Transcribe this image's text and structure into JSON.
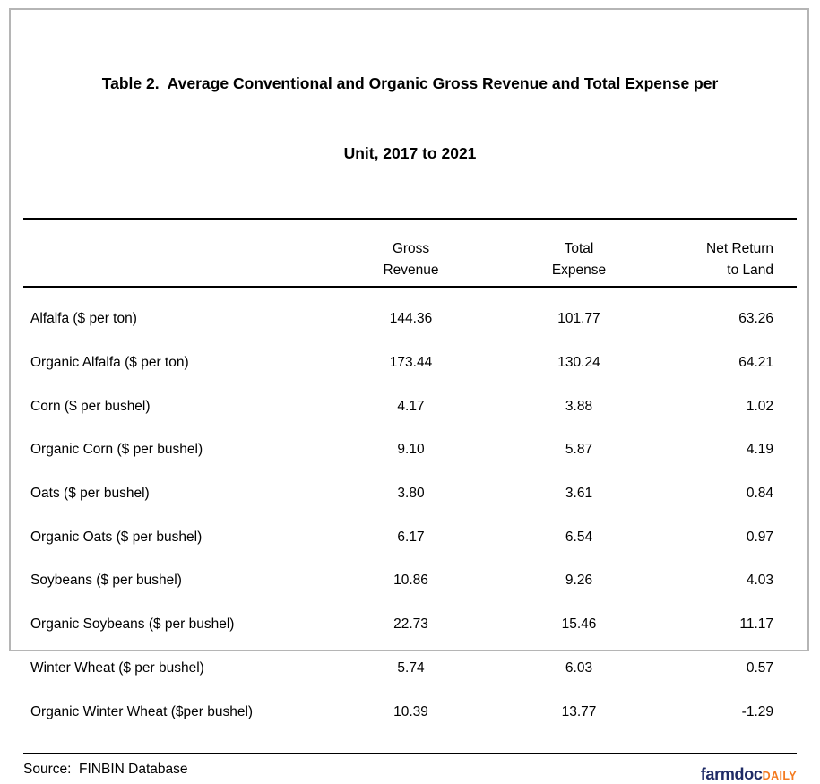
{
  "title": {
    "line1": "Table 2.  Average Conventional and Organic Gross Revenue and Total Expense per",
    "line2": "Unit, 2017 to 2021"
  },
  "header": {
    "columns": [
      {
        "line1": "Gross",
        "line2": "Revenue"
      },
      {
        "line1": "Total",
        "line2": "Expense"
      },
      {
        "line1": "Net Return",
        "line2": "to Land"
      }
    ]
  },
  "rows": [
    {
      "label": "Alfalfa ($ per ton)",
      "gross_revenue": "144.36",
      "total_expense": "101.77",
      "net_return": "63.26"
    },
    {
      "label": "Organic Alfalfa ($ per ton)",
      "gross_revenue": "173.44",
      "total_expense": "130.24",
      "net_return": "64.21"
    },
    {
      "label": "Corn ($ per bushel)",
      "gross_revenue": "4.17",
      "total_expense": "3.88",
      "net_return": "1.02"
    },
    {
      "label": "Organic Corn ($ per bushel)",
      "gross_revenue": "9.10",
      "total_expense": "5.87",
      "net_return": "4.19"
    },
    {
      "label": "Oats ($ per bushel)",
      "gross_revenue": "3.80",
      "total_expense": "3.61",
      "net_return": "0.84"
    },
    {
      "label": "Organic Oats ($ per bushel)",
      "gross_revenue": "6.17",
      "total_expense": "6.54",
      "net_return": "0.97"
    },
    {
      "label": "Soybeans ($ per bushel)",
      "gross_revenue": "10.86",
      "total_expense": "9.26",
      "net_return": "4.03"
    },
    {
      "label": "Organic Soybeans ($ per bushel)",
      "gross_revenue": "22.73",
      "total_expense": "15.46",
      "net_return": "11.17"
    },
    {
      "label": "Winter Wheat ($ per bushel)",
      "gross_revenue": "5.74",
      "total_expense": "6.03",
      "net_return": "0.57"
    },
    {
      "label": "Organic Winter Wheat ($per bushel)",
      "gross_revenue": "10.39",
      "total_expense": "13.77",
      "net_return": "-1.29"
    }
  ],
  "footer": {
    "source": "Source:  FINBIN Database",
    "logo": {
      "farmdoc": "farmdoc",
      "daily": "DAILY"
    }
  },
  "colors": {
    "logo_navy": "#1f2b66",
    "logo_orange": "#f47b20",
    "rule_black": "#000000",
    "card_border_gray": "#b5b5b5"
  },
  "chart_data": {
    "type": "table",
    "title": "Table 2.  Average Conventional and Organic Gross Revenue and Total Expense per Unit, 2017 to 2021",
    "columns": [
      "",
      "Gross Revenue",
      "Total Expense",
      "Net Return to Land"
    ],
    "rows": [
      [
        "Alfalfa ($ per ton)",
        144.36,
        101.77,
        63.26
      ],
      [
        "Organic Alfalfa ($ per ton)",
        173.44,
        130.24,
        64.21
      ],
      [
        "Corn ($ per bushel)",
        4.17,
        3.88,
        1.02
      ],
      [
        "Organic Corn ($ per bushel)",
        9.1,
        5.87,
        4.19
      ],
      [
        "Oats ($ per bushel)",
        3.8,
        3.61,
        0.84
      ],
      [
        "Organic Oats ($ per bushel)",
        6.17,
        6.54,
        0.97
      ],
      [
        "Soybeans ($ per bushel)",
        10.86,
        9.26,
        4.03
      ],
      [
        "Organic Soybeans ($ per bushel)",
        22.73,
        15.46,
        11.17
      ],
      [
        "Winter Wheat ($ per bushel)",
        5.74,
        6.03,
        0.57
      ],
      [
        "Organic Winter Wheat ($per bushel)",
        10.39,
        13.77,
        -1.29
      ]
    ],
    "source": "Source:  FINBIN Database"
  }
}
